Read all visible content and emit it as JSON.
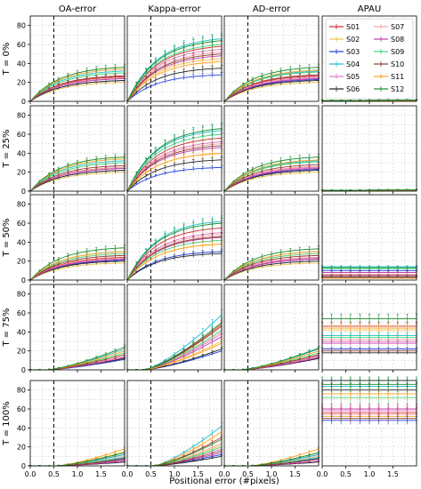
{
  "chart_data": {
    "type": "line",
    "col_titles": [
      "OA-error",
      "Kappa-error",
      "AD-error",
      "APAU"
    ],
    "row_labels": [
      "T = 0%",
      "T = 25%",
      "T = 50%",
      "T = 75%",
      "T = 100%"
    ],
    "xlabel": "Positional error (#pixels)",
    "x_ticks": [
      "0.0",
      "0.5",
      "1.0",
      "1.5"
    ],
    "y_ticks": [
      "0",
      "20",
      "40",
      "60",
      "80"
    ],
    "xlim": [
      0,
      2
    ],
    "ylim": [
      0,
      90
    ],
    "vline_x": 0.5,
    "grid": true,
    "legend_position": "top-right panel",
    "x": [
      0,
      0.1,
      0.2,
      0.3,
      0.4,
      0.5,
      0.6,
      0.7,
      0.8,
      0.9,
      1.0,
      1.1,
      1.2,
      1.3,
      1.4,
      1.5,
      1.6,
      1.7,
      1.8,
      1.9,
      2.0
    ],
    "series": [
      {
        "name": "S01",
        "color": "#d62728"
      },
      {
        "name": "S02",
        "color": "#e8c04a"
      },
      {
        "name": "S03",
        "color": "#1f3fd6"
      },
      {
        "name": "S04",
        "color": "#17becf"
      },
      {
        "name": "S05",
        "color": "#e377c2"
      },
      {
        "name": "S06",
        "color": "#222222"
      },
      {
        "name": "S07",
        "color": "#f4a6a6"
      },
      {
        "name": "S08",
        "color": "#c03fa8"
      },
      {
        "name": "S09",
        "color": "#3fd67a"
      },
      {
        "name": "S10",
        "color": "#8c3b2e"
      },
      {
        "name": "S11",
        "color": "#ff9f1c"
      },
      {
        "name": "S12",
        "color": "#1a8a2e"
      }
    ],
    "panel_final_values": [
      [
        [
          26,
          20,
          22,
          32,
          24,
          22,
          25,
          24,
          30,
          27,
          34,
          36
        ],
        [
          58,
          45,
          28,
          66,
          55,
          35,
          52,
          48,
          60,
          50,
          42,
          64
        ],
        [
          27,
          20,
          23,
          32,
          25,
          22,
          26,
          24,
          31,
          28,
          33,
          36
        ],
        [
          1,
          1,
          1,
          1,
          1,
          1,
          1,
          1,
          1,
          1,
          1,
          1
        ]
      ],
      [
        [
          25,
          20,
          22,
          32,
          24,
          22,
          25,
          24,
          30,
          27,
          34,
          36
        ],
        [
          56,
          40,
          25,
          64,
          52,
          33,
          50,
          46,
          60,
          48,
          40,
          66
        ],
        [
          26,
          20,
          23,
          32,
          25,
          22,
          26,
          24,
          31,
          28,
          33,
          36
        ],
        [
          1,
          1,
          1,
          1,
          1,
          1,
          1,
          1,
          1,
          1,
          1,
          1
        ]
      ],
      [
        [
          24,
          18,
          21,
          30,
          22,
          20,
          23,
          22,
          28,
          26,
          30,
          34
        ],
        [
          55,
          38,
          30,
          62,
          50,
          28,
          48,
          45,
          42,
          46,
          38,
          60
        ],
        [
          24,
          18,
          22,
          30,
          23,
          20,
          24,
          22,
          28,
          26,
          30,
          33
        ],
        [
          3,
          2,
          10,
          14,
          4,
          3,
          6,
          8,
          12,
          5,
          2,
          13
        ]
      ],
      [
        [
          14,
          12,
          11,
          22,
          13,
          12,
          14,
          13,
          18,
          16,
          20,
          24
        ],
        [
          48,
          30,
          20,
          58,
          38,
          22,
          40,
          35,
          42,
          46,
          28,
          50
        ],
        [
          16,
          12,
          12,
          22,
          14,
          12,
          15,
          13,
          18,
          16,
          20,
          23
        ],
        [
          46,
          42,
          22,
          36,
          30,
          18,
          32,
          28,
          34,
          20,
          44,
          54
        ]
      ],
      [
        [
          12,
          15,
          8,
          12,
          6,
          4,
          10,
          5,
          9,
          7,
          18,
          14
        ],
        [
          30,
          22,
          12,
          42,
          18,
          10,
          24,
          14,
          20,
          16,
          36,
          28
        ],
        [
          12,
          14,
          8,
          12,
          7,
          4,
          10,
          5,
          9,
          7,
          18,
          14
        ],
        [
          56,
          52,
          48,
          84,
          58,
          80,
          54,
          60,
          72,
          50,
          76,
          86
        ]
      ]
    ]
  }
}
